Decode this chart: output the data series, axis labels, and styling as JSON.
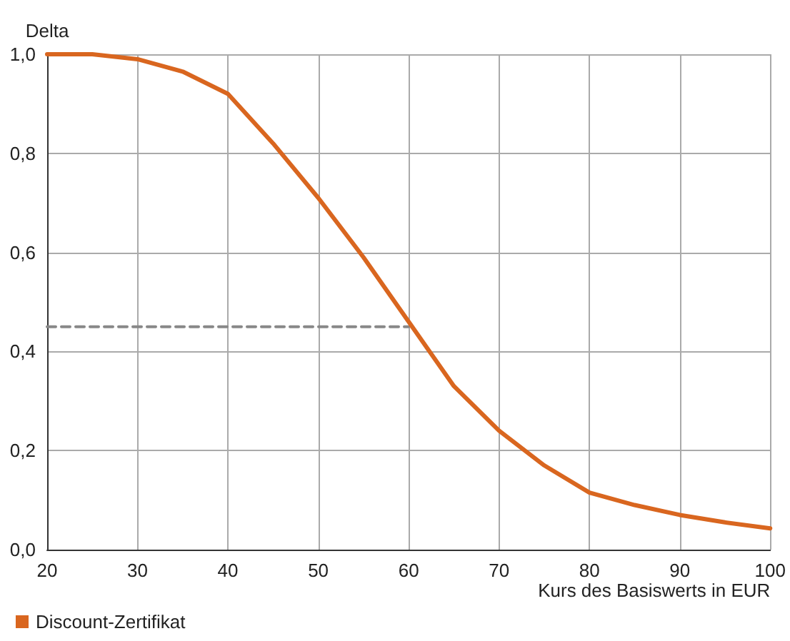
{
  "chart_data": {
    "type": "line",
    "xlabel": "Kurs des Basiswerts in EUR",
    "ylabel": "Delta",
    "xlim": [
      20,
      100
    ],
    "xticks": [
      20,
      30,
      40,
      50,
      60,
      70,
      80,
      90,
      100
    ],
    "ylim": [
      0,
      1
    ],
    "yticks": [
      {
        "value": 0,
        "label": "0,0"
      },
      {
        "value": 0.2,
        "label": "0,2"
      },
      {
        "value": 0.4,
        "label": "0,4"
      },
      {
        "value": 0.6,
        "label": "0,6"
      },
      {
        "value": 0.8,
        "label": "0,8"
      },
      {
        "value": 1,
        "label": "1,0"
      }
    ],
    "grid": true,
    "legend": "bottom left",
    "marker": "none",
    "series": [
      {
        "name": "Discount-Zertifikat",
        "color": "#d9661f",
        "line_style": "solid",
        "x": [
          20,
          25,
          30,
          35,
          40,
          45,
          50,
          55,
          60,
          65,
          70,
          75,
          80,
          85,
          90,
          95,
          100
        ],
        "values": [
          1.0,
          1.0,
          0.99,
          0.965,
          0.92,
          0.82,
          0.71,
          0.59,
          0.46,
          0.33,
          0.24,
          0.17,
          0.115,
          0.09,
          0.07,
          0.055,
          0.043
        ]
      },
      {
        "color": "#888888",
        "line_style": "dashed",
        "x": [
          20,
          60
        ],
        "values": [
          0.45,
          0.45
        ]
      }
    ]
  }
}
